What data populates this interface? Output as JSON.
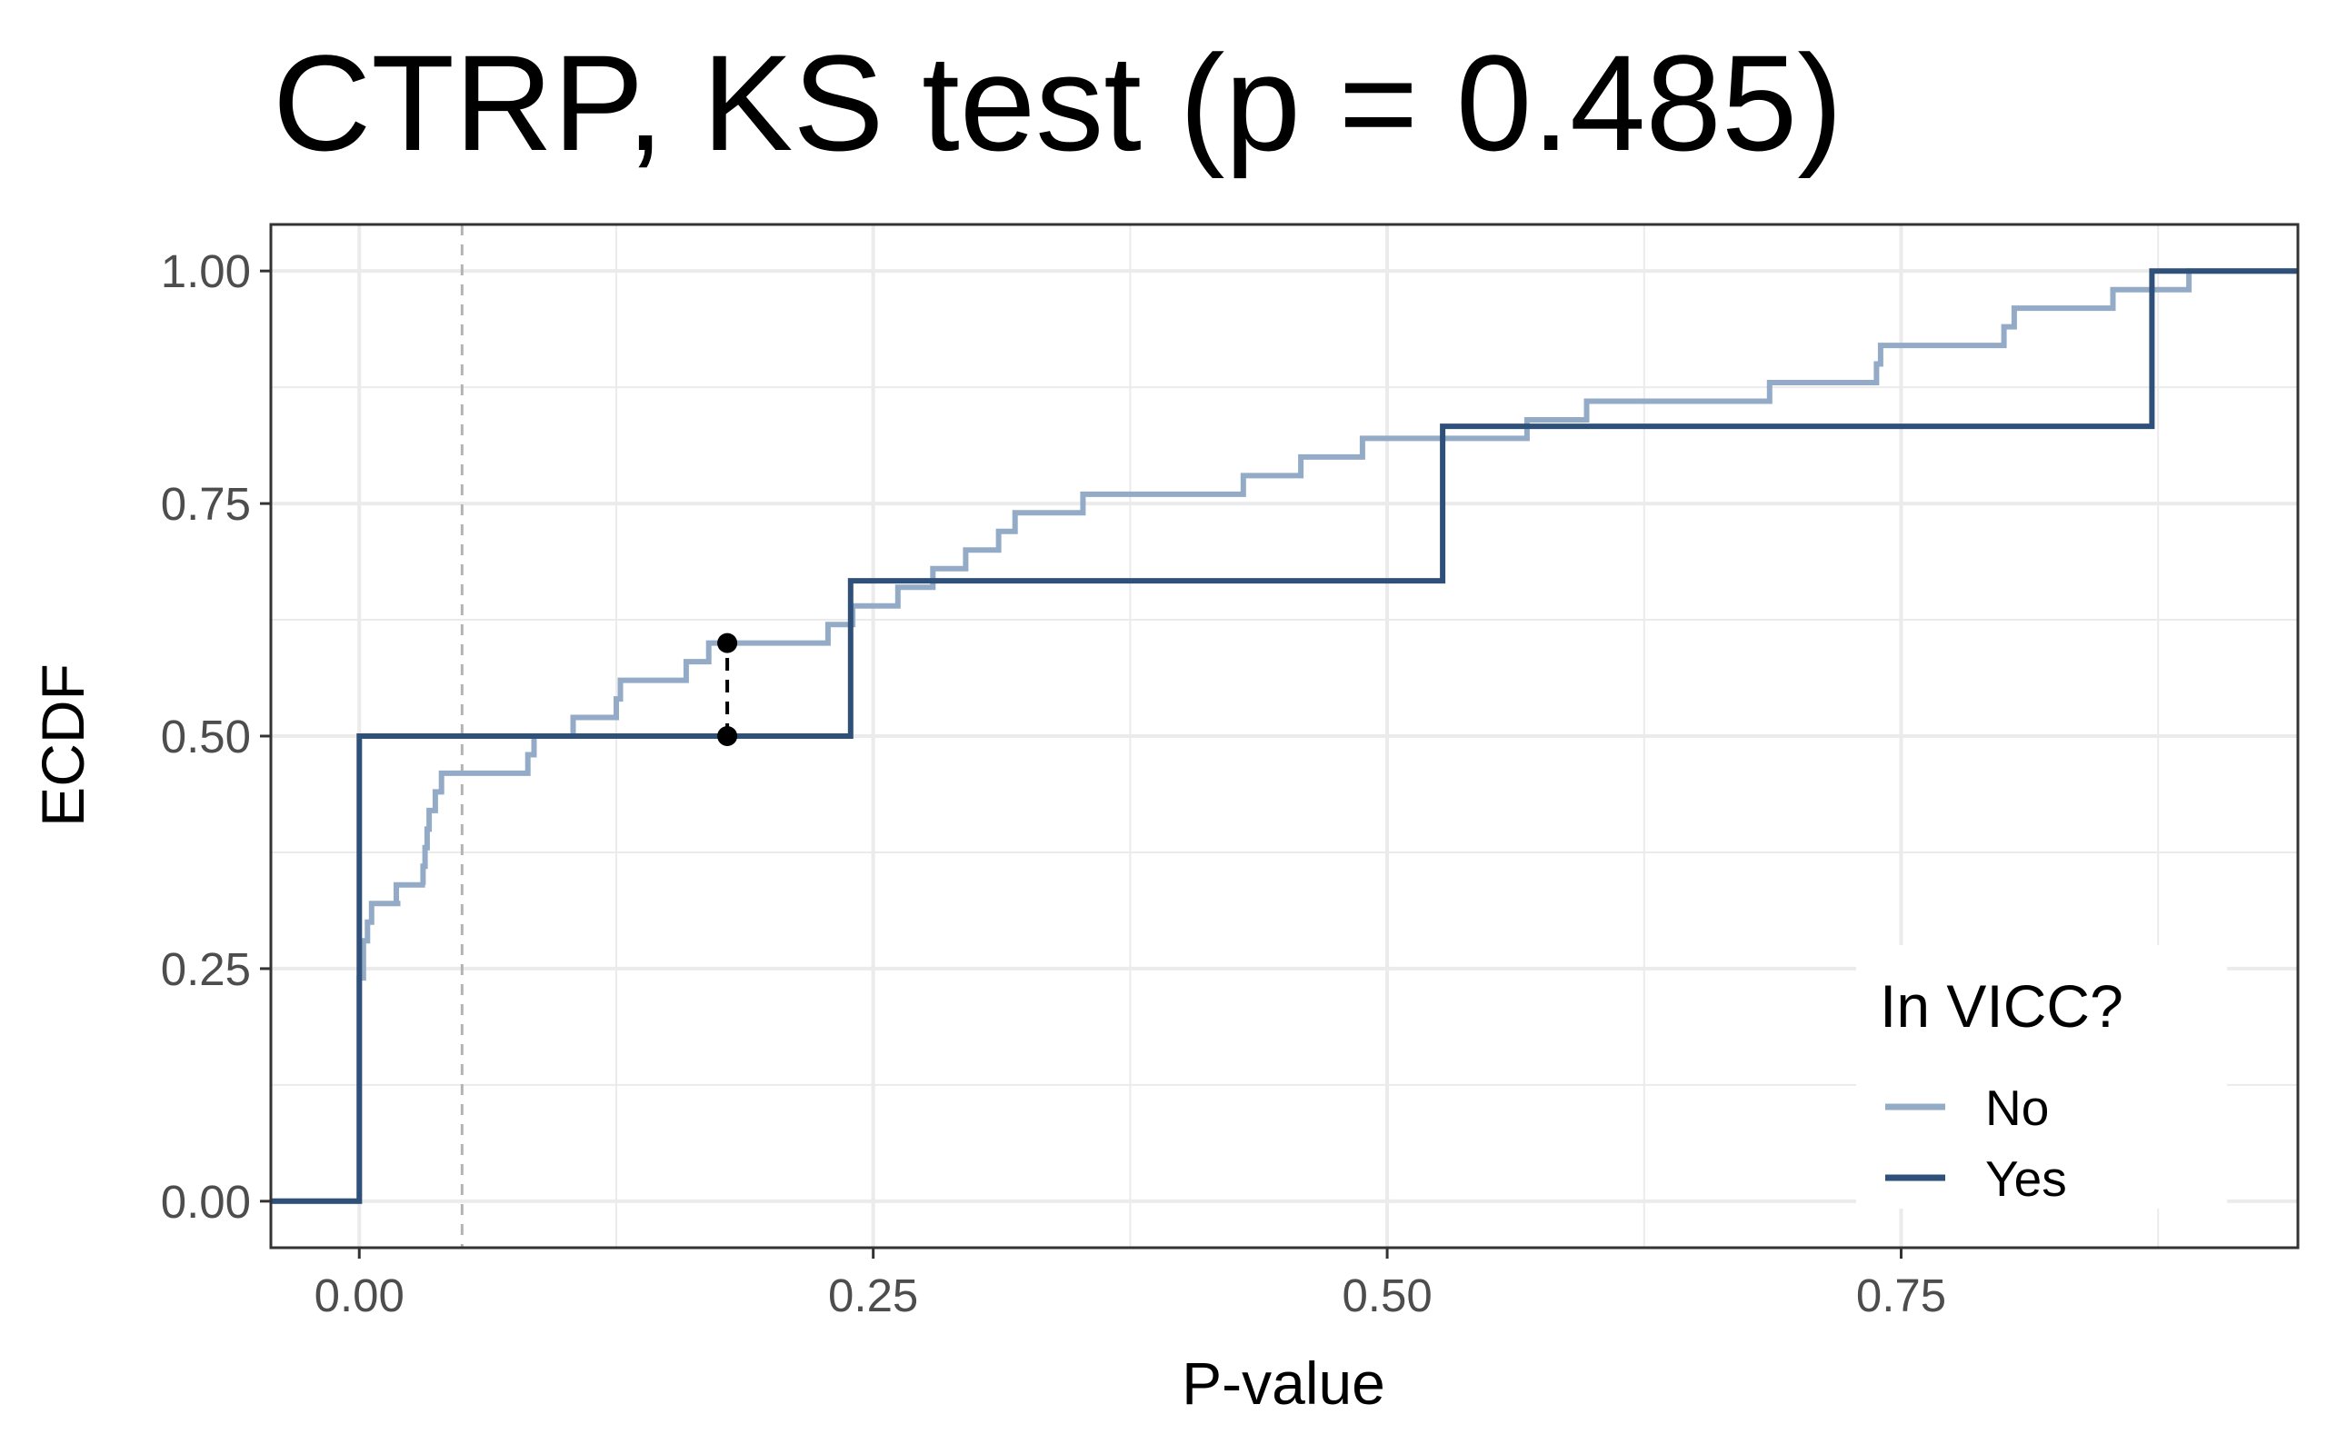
{
  "chart_data": {
    "type": "line",
    "subtype": "ecdf-step",
    "title": "CTRP, KS test (p = 0.485)",
    "xlabel": "P-value",
    "ylabel": "ECDF",
    "xlim": [
      -0.043,
      0.943
    ],
    "ylim": [
      -0.05,
      1.05
    ],
    "x_ticks": [
      0,
      0.25,
      0.5,
      0.75
    ],
    "x_tick_labels": [
      "0.00",
      "0.25",
      "0.50",
      "0.75"
    ],
    "y_ticks": [
      0,
      0.25,
      0.5,
      0.75,
      1.0
    ],
    "y_tick_labels": [
      "0.00",
      "0.25",
      "0.50",
      "0.75",
      "1.00"
    ],
    "grid": true,
    "reference_line": {
      "x": 0.05,
      "style": "dashed",
      "color": "#b3b3b3"
    },
    "ks_statistic_segment": {
      "x": 0.179,
      "y_from": 0.5,
      "y_to": 0.6,
      "color": "#000000"
    },
    "legend": {
      "title": "In VICC?",
      "position": "bottom-right"
    },
    "series": [
      {
        "name": "No",
        "color": "#93abc6",
        "steps": [
          [
            -0.043,
            0.0
          ],
          [
            0.0,
            0.24
          ],
          [
            0.002,
            0.28
          ],
          [
            0.004,
            0.3
          ],
          [
            0.006,
            0.32
          ],
          [
            0.02,
            0.32
          ],
          [
            0.018,
            0.34
          ],
          [
            0.032,
            0.34
          ],
          [
            0.031,
            0.36
          ],
          [
            0.032,
            0.38
          ],
          [
            0.033,
            0.4
          ],
          [
            0.034,
            0.42
          ],
          [
            0.037,
            0.44
          ],
          [
            0.04,
            0.46
          ],
          [
            0.058,
            0.46
          ],
          [
            0.06,
            0.46
          ],
          [
            0.082,
            0.48
          ],
          [
            0.085,
            0.5
          ],
          [
            0.1,
            0.5
          ],
          [
            0.104,
            0.52
          ],
          [
            0.125,
            0.54
          ],
          [
            0.127,
            0.56
          ],
          [
            0.159,
            0.58
          ],
          [
            0.17,
            0.6
          ],
          [
            0.182,
            0.6
          ],
          [
            0.228,
            0.62
          ],
          [
            0.24,
            0.64
          ],
          [
            0.262,
            0.66
          ],
          [
            0.279,
            0.68
          ],
          [
            0.295,
            0.7
          ],
          [
            0.311,
            0.72
          ],
          [
            0.319,
            0.74
          ],
          [
            0.352,
            0.76
          ],
          [
            0.43,
            0.78
          ],
          [
            0.458,
            0.8
          ],
          [
            0.488,
            0.82
          ],
          [
            0.567,
            0.82
          ],
          [
            0.568,
            0.84
          ],
          [
            0.597,
            0.86
          ],
          [
            0.686,
            0.88
          ],
          [
            0.738,
            0.9
          ],
          [
            0.74,
            0.92
          ],
          [
            0.8,
            0.94
          ],
          [
            0.805,
            0.96
          ],
          [
            0.853,
            0.98
          ],
          [
            0.89,
            1.0
          ],
          [
            0.943,
            1.0
          ]
        ]
      },
      {
        "name": "Yes",
        "color": "#2f5179",
        "steps": [
          [
            -0.043,
            0.0
          ],
          [
            0.0,
            0.5
          ],
          [
            0.239,
            0.667
          ],
          [
            0.527,
            0.833
          ],
          [
            0.872,
            1.0
          ],
          [
            0.943,
            1.0
          ]
        ]
      }
    ]
  }
}
